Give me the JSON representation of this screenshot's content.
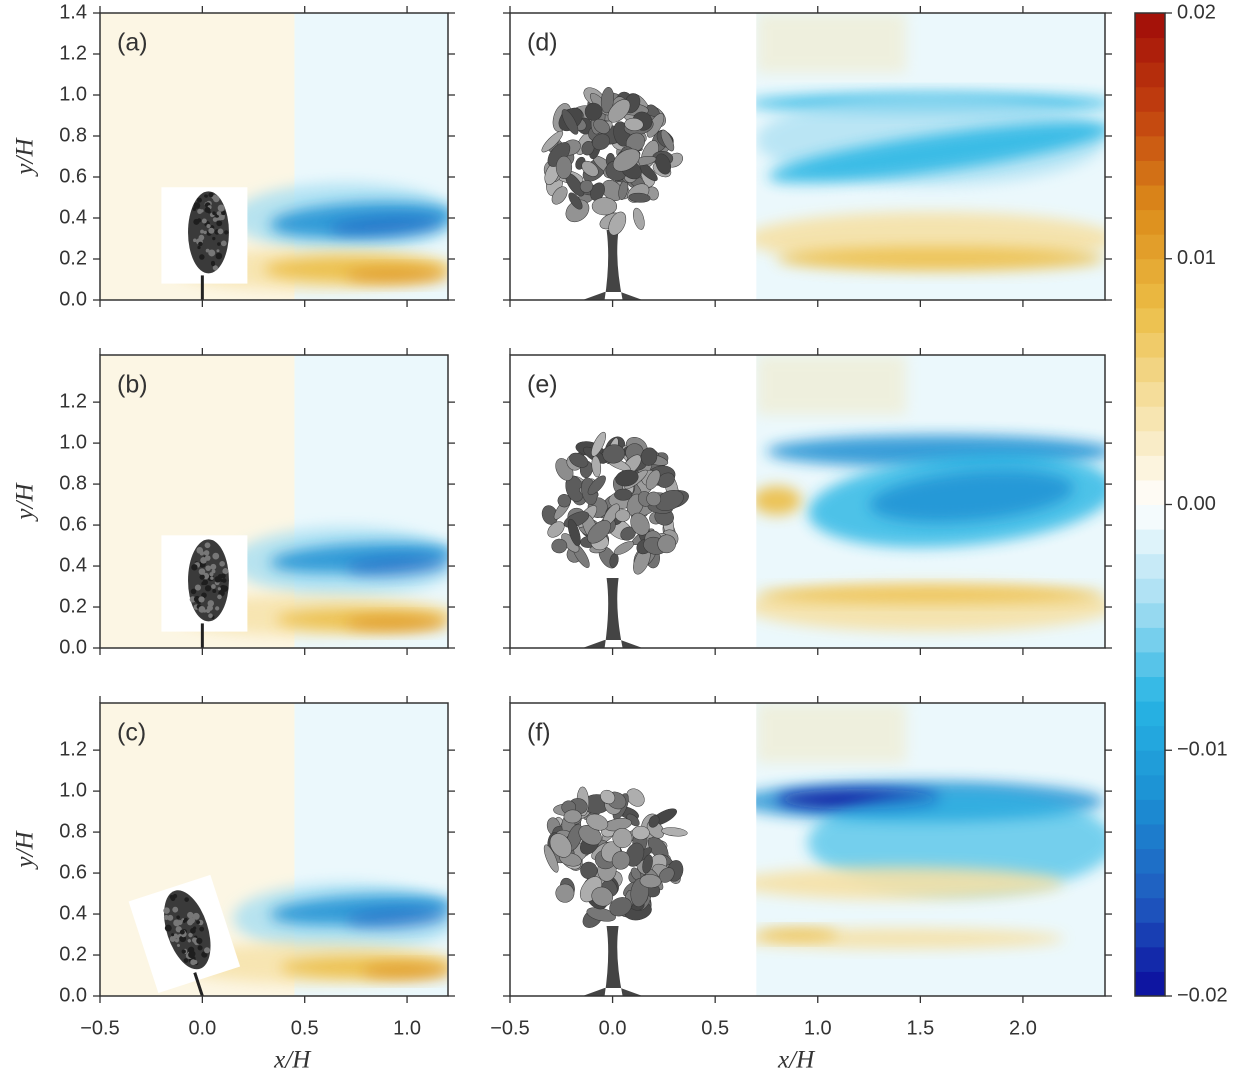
{
  "chart_data": [
    {
      "type": "contour",
      "label": "(a)",
      "xlim": [
        -0.5,
        1.2
      ],
      "ylim": [
        0,
        1.4
      ],
      "xticks": [
        -0.5,
        0,
        0.5,
        1
      ],
      "show_xtick_labels": false,
      "yticks": [
        {
          "value": 0,
          "label": "0.0"
        },
        0.2,
        0.4,
        0.6,
        0.8,
        {
          "value": 1,
          "label": "1.0"
        },
        1.2,
        1.4
      ],
      "show_ytick_labels": true,
      "ylabel": "y/H"
    },
    {
      "type": "contour",
      "label": "(d)",
      "xlim": [
        -0.5,
        2.4
      ],
      "ylim": [
        0,
        1.4
      ],
      "xticks": [
        -0.5,
        0,
        0.5,
        1,
        1.5,
        2
      ],
      "show_xtick_labels": false,
      "yticks": [
        0,
        0.2,
        0.4,
        0.6,
        0.8,
        1,
        1.2,
        1.4
      ],
      "show_ytick_labels": false
    },
    {
      "type": "contour",
      "label": "(b)",
      "xlim": [
        -0.5,
        1.2
      ],
      "ylim": [
        0,
        1.43
      ],
      "xticks": [
        -0.5,
        0,
        0.5,
        1
      ],
      "show_xtick_labels": false,
      "yticks": [
        {
          "value": 0,
          "label": "0.0"
        },
        0.2,
        0.4,
        0.6,
        0.8,
        {
          "value": 1,
          "label": "1.0"
        },
        1.2
      ],
      "show_ytick_labels": true,
      "ylabel": "y/H"
    },
    {
      "type": "contour",
      "label": "(e)",
      "xlim": [
        -0.5,
        2.4
      ],
      "ylim": [
        0,
        1.43
      ],
      "xticks": [
        -0.5,
        0,
        0.5,
        1,
        1.5,
        2
      ],
      "show_xtick_labels": false,
      "yticks": [
        0,
        0.2,
        0.4,
        0.6,
        0.8,
        1,
        1.2
      ],
      "show_ytick_labels": false
    },
    {
      "type": "contour",
      "label": "(c)",
      "xlim": [
        -0.5,
        1.2
      ],
      "ylim": [
        0,
        1.43
      ],
      "xticks": [
        {
          "value": -0.5,
          "label": "−0.5"
        },
        {
          "value": 0,
          "label": "0.0"
        },
        0.5,
        {
          "value": 1,
          "label": "1.0"
        }
      ],
      "show_xtick_labels": true,
      "yticks": [
        {
          "value": 0,
          "label": "0.0"
        },
        0.2,
        0.4,
        0.6,
        0.8,
        {
          "value": 1,
          "label": "1.0"
        },
        1.2
      ],
      "show_ytick_labels": true,
      "ylabel": "y/H",
      "xlabel": "x/H"
    },
    {
      "type": "contour",
      "label": "(f)",
      "xlim": [
        -0.5,
        2.4
      ],
      "ylim": [
        0,
        1.43
      ],
      "xticks": [
        {
          "value": -0.5,
          "label": "−0.5"
        },
        {
          "value": 0,
          "label": "0.0"
        },
        0.5,
        {
          "value": 1,
          "label": "1.0"
        },
        1.5,
        {
          "value": 2,
          "label": "2.0"
        }
      ],
      "show_xtick_labels": true,
      "yticks": [
        0,
        0.2,
        0.4,
        0.6,
        0.8,
        1,
        1.2
      ],
      "show_ytick_labels": false,
      "xlabel": "x/H"
    },
    {
      "type": "colorbar",
      "lim": [
        -0.02,
        0.02
      ],
      "levels": 40,
      "ticks": [
        0.02,
        0.01,
        {
          "value": 0,
          "label": "0.00"
        },
        {
          "value": -0.01,
          "label": "−0.01"
        },
        {
          "value": -0.02,
          "label": "−0.02"
        }
      ],
      "cmap": [
        "#0b0b9c",
        "#1f5cc0",
        "#1c8fd3",
        "#27b5e4",
        "#a6def2",
        "#ffffff",
        "#f6e1a6",
        "#ecbd45",
        "#dc8c1a",
        "#c2410f",
        "#a00b08"
      ]
    }
  ]
}
